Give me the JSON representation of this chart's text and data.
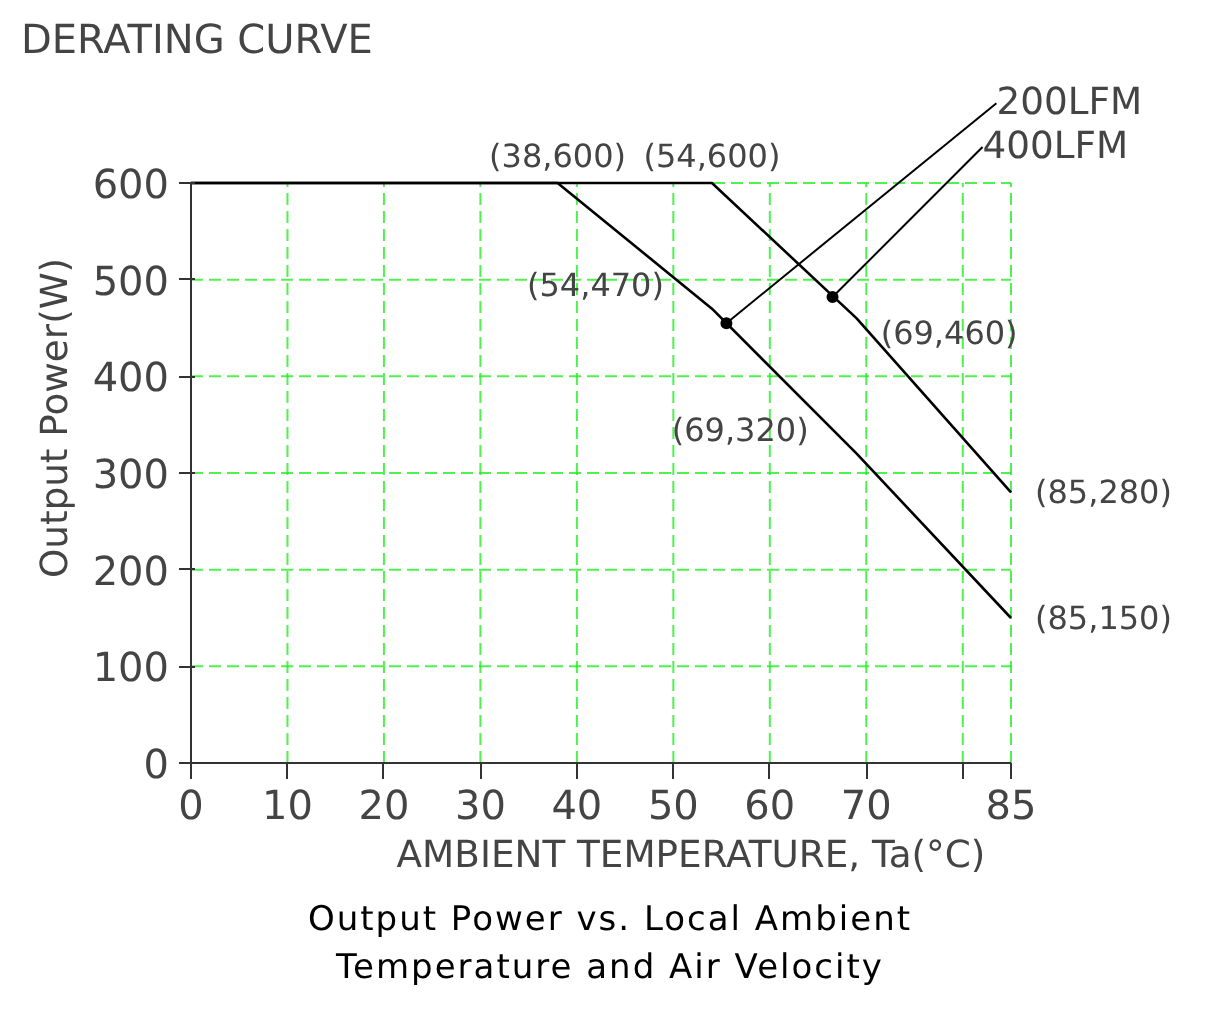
{
  "chart_data": {
    "type": "line",
    "title": "DERATING CURVE",
    "xlabel": "AMBIENT TEMPERATURE, Ta(°C)",
    "ylabel": "Output Power(W)",
    "series": [
      {
        "color": "#000000",
        "x": [
          0,
          38,
          54,
          69,
          85
        ],
        "values": [
          600,
          600,
          470,
          320,
          150
        ]
      },
      {
        "color": "#000000",
        "x": [
          0,
          54,
          69,
          85
        ],
        "values": [
          600,
          600,
          460,
          280
        ]
      }
    ],
    "xlim": [
      0,
      85
    ],
    "ylim": [
      0,
      600
    ],
    "xticks": [
      0,
      10,
      20,
      30,
      40,
      50,
      60,
      70,
      {
        "value": 80,
        "label": null
      },
      85
    ],
    "yticks": [
      0,
      100,
      200,
      300,
      400,
      500,
      600
    ],
    "grid": true,
    "legend": false,
    "marker": "none",
    "line_style": "solid",
    "annotations": [
      {
        "text": "(38,600)",
        "x": 38,
        "y": 600
      },
      {
        "text": "(54,600)",
        "x": 54,
        "y": 600
      },
      {
        "text": "(54,470)",
        "x": 54,
        "y": 470
      },
      {
        "text": "(69,320)",
        "x": 69,
        "y": 320
      },
      {
        "text": "(85,150)",
        "x": 85,
        "y": 150
      },
      {
        "text": "(69,460)",
        "x": 69,
        "y": 460
      },
      {
        "text": "(85,280)",
        "x": 85,
        "y": 280
      },
      {
        "text": "200LFM",
        "x": 55.5,
        "y": 455
      },
      {
        "text": "400LFM",
        "x": 66.5,
        "y": 482
      },
      "Output Power vs. Local Ambient\nTemperature and Air Velocity"
    ]
  }
}
